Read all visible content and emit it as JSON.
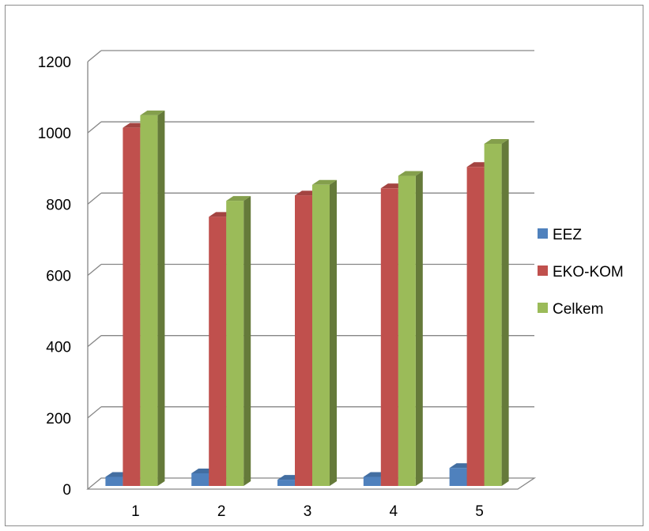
{
  "chart_data": {
    "type": "bar",
    "style": "3d-clustered-column",
    "categories": [
      "1",
      "2",
      "3",
      "4",
      "5"
    ],
    "series": [
      {
        "name": "EEZ",
        "values": [
          30,
          40,
          22,
          30,
          55
        ],
        "color": "#4f81bd"
      },
      {
        "name": "EKO-KOM",
        "values": [
          1010,
          760,
          820,
          840,
          900
        ],
        "color": "#c0504d"
      },
      {
        "name": "Celkem",
        "values": [
          1045,
          805,
          850,
          875,
          965
        ],
        "color": "#9bbb59"
      }
    ],
    "title": "",
    "xlabel": "",
    "ylabel": "",
    "ylim": [
      0,
      1200
    ],
    "yticks": [
      "0",
      "200",
      "400",
      "600",
      "800",
      "1000",
      "1200"
    ],
    "grid": true,
    "legend_position": "right"
  }
}
